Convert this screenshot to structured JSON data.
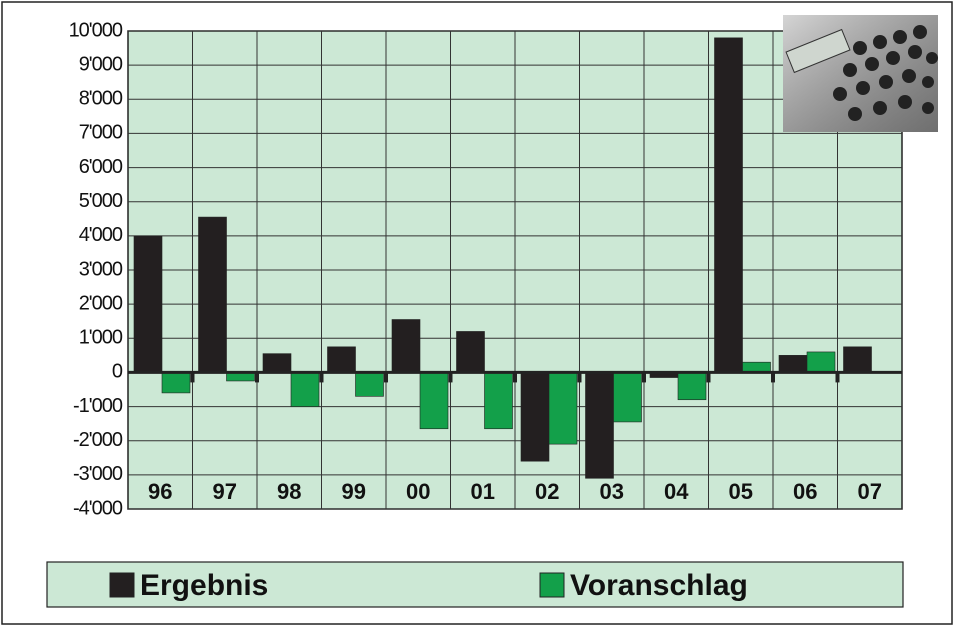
{
  "chart_data": {
    "type": "bar",
    "categories": [
      "96",
      "97",
      "98",
      "99",
      "00",
      "01",
      "02",
      "03",
      "04",
      "05",
      "06",
      "07"
    ],
    "series": [
      {
        "name": "Ergebnis",
        "color": "#231f20",
        "values": [
          4000,
          4550,
          550,
          750,
          1550,
          1200,
          -2600,
          -3100,
          -150,
          9800,
          500,
          750
        ]
      },
      {
        "name": "Voranschlag",
        "color": "#13a04a",
        "values": [
          -600,
          -250,
          -1000,
          -700,
          -1650,
          -1650,
          -2100,
          -1450,
          -800,
          300,
          600,
          null
        ]
      }
    ],
    "ylim": [
      -4000,
      10000
    ],
    "yticks": [
      {
        "value": -4000,
        "label": "-4'000"
      },
      {
        "value": -3000,
        "label": "-3'000"
      },
      {
        "value": -2000,
        "label": "-2'000"
      },
      {
        "value": -1000,
        "label": "-1'000"
      },
      0,
      {
        "value": 1000,
        "label": "1'000"
      },
      {
        "value": 2000,
        "label": "2'000"
      },
      {
        "value": 3000,
        "label": "3'000"
      },
      {
        "value": 4000,
        "label": "4'000"
      },
      {
        "value": 5000,
        "label": "5'000"
      },
      {
        "value": 6000,
        "label": "6'000"
      },
      {
        "value": 7000,
        "label": "7'000"
      },
      {
        "value": 8000,
        "label": "8'000"
      },
      {
        "value": 9000,
        "label": "9'000"
      },
      {
        "value": 10000,
        "label": "10'000"
      }
    ],
    "grid": true
  }
}
